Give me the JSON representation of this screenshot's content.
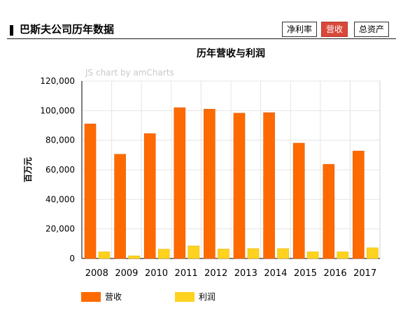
{
  "header": {
    "title": "巴斯夫公司历年数据",
    "tabs": [
      {
        "label": "净利率",
        "active": false
      },
      {
        "label": "营收",
        "active": true
      },
      {
        "label": "总资产",
        "active": false
      }
    ]
  },
  "watermark": "JS chart by amCharts",
  "colors": {
    "revenue": "#ff6a00",
    "revenue_edge": "#e05a00",
    "profit": "#ffd21f",
    "profit_edge": "#e6b800",
    "active_tab": "#d9483b",
    "grid": "#e4e4e4"
  },
  "chart_data": {
    "type": "bar",
    "title": "历年营收与利润",
    "xlabel": "",
    "ylabel": "百万元",
    "ylim": [
      0,
      120000
    ],
    "yticks": [
      0,
      20000,
      40000,
      60000,
      80000,
      100000,
      120000
    ],
    "ytick_labels": [
      "0",
      "20,000",
      "40,000",
      "60,000",
      "80,000",
      "100,000",
      "120,000"
    ],
    "categories": [
      "2008",
      "2009",
      "2010",
      "2011",
      "2012",
      "2013",
      "2014",
      "2015",
      "2016",
      "2017"
    ],
    "series": [
      {
        "name": "营收",
        "values": [
          91000,
          70500,
          84500,
          102000,
          101000,
          98300,
          98600,
          78000,
          63700,
          72700
        ]
      },
      {
        "name": "利润",
        "values": [
          4500,
          1800,
          6300,
          8500,
          6400,
          6700,
          6700,
          4500,
          4500,
          7200
        ]
      }
    ],
    "grid": true,
    "legend_position": "bottom-left"
  }
}
